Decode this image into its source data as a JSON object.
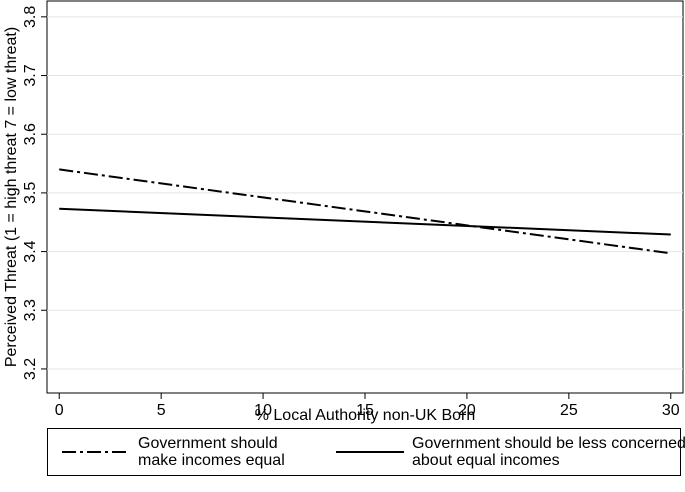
{
  "chart_data": {
    "type": "line",
    "x_label": "% Local Authority non-UK Born",
    "y_label": "Perceived Threat (1 = high threat 7 = low threat)",
    "x": [
      0,
      30
    ],
    "series": [
      {
        "name": "Government should make incomes equal",
        "color": "#000000",
        "style": "dashdot",
        "values": [
          3.54,
          3.397
        ]
      },
      {
        "name": "Government should be less concerned about equal incomes",
        "color": "#000000",
        "style": "solid",
        "values": [
          3.473,
          3.429
        ]
      }
    ],
    "xlim": [
      -0.6,
      30.6
    ],
    "ylim": [
      3.159,
      3.827
    ],
    "xticks": [
      0,
      5,
      10,
      15,
      20,
      25,
      30
    ],
    "yticks": [
      3.2,
      3.3,
      3.4,
      3.5,
      3.6,
      3.7,
      3.8
    ],
    "grid": true,
    "legend": "bottom"
  }
}
